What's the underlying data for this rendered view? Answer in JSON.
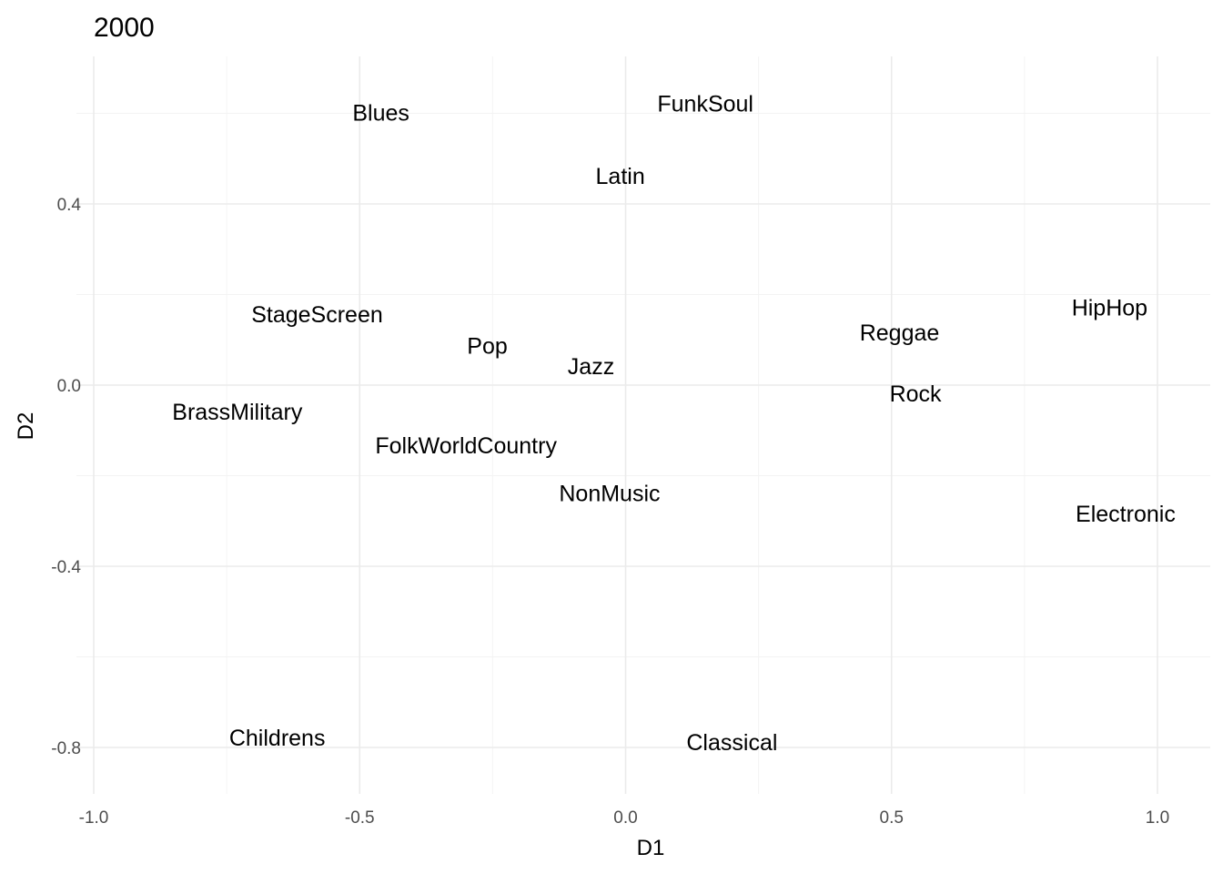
{
  "chart_data": {
    "type": "scatter",
    "title": "2000",
    "xlabel": "D1",
    "ylabel": "D2",
    "xlim": [
      -1.0,
      1.1
    ],
    "ylim": [
      -0.9,
      0.72
    ],
    "xticks": [
      -1.0,
      -0.5,
      0.0,
      0.5,
      1.0
    ],
    "xtick_labels": [
      "-1.0",
      "-0.5",
      "0.0",
      "0.5",
      "1.0"
    ],
    "yticks": [
      0.4,
      0.0,
      -0.4,
      -0.8
    ],
    "ytick_labels": [
      "0.4",
      "0.0",
      "-0.4",
      "-0.8"
    ],
    "grid": true,
    "points": [
      {
        "label": "Blues",
        "x": -0.46,
        "y": 0.6
      },
      {
        "label": "FunkSoul",
        "x": 0.15,
        "y": 0.62
      },
      {
        "label": "Latin",
        "x": -0.01,
        "y": 0.46
      },
      {
        "label": "StageScreen",
        "x": -0.58,
        "y": 0.155
      },
      {
        "label": "HipHop",
        "x": 0.91,
        "y": 0.17
      },
      {
        "label": "Reggae",
        "x": 0.515,
        "y": 0.115
      },
      {
        "label": "Pop",
        "x": -0.26,
        "y": 0.085
      },
      {
        "label": "Jazz",
        "x": -0.065,
        "y": 0.04
      },
      {
        "label": "Rock",
        "x": 0.545,
        "y": -0.02
      },
      {
        "label": "BrassMilitary",
        "x": -0.73,
        "y": -0.06
      },
      {
        "label": "FolkWorldCountry",
        "x": -0.3,
        "y": -0.135
      },
      {
        "label": "NonMusic",
        "x": -0.03,
        "y": -0.24
      },
      {
        "label": "Electronic",
        "x": 0.94,
        "y": -0.285
      },
      {
        "label": "Childrens",
        "x": -0.655,
        "y": -0.78
      },
      {
        "label": "Classical",
        "x": 0.2,
        "y": -0.79
      }
    ]
  }
}
